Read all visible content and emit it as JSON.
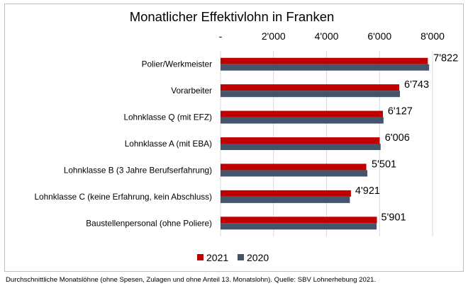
{
  "chart_data": {
    "type": "bar",
    "orientation": "horizontal",
    "title": "Monatlicher Effektivlohn in Franken",
    "categories": [
      "Polier/Werkmeister",
      "Vorarbeiter",
      "Lohnklasse Q (mit EFZ)",
      "Lohnklasse A (mit EBA)",
      "Lohnklasse B (3 Jahre Berufserfahrung)",
      "Lohnklasse C (keine Erfahrung, kein Abschluss)",
      "Baustellenpersonal (ohne Poliere)"
    ],
    "series": [
      {
        "name": "2021",
        "color": "#c00000",
        "values": [
          7822,
          6743,
          6127,
          6006,
          5501,
          4921,
          5901
        ]
      },
      {
        "name": "2020",
        "color": "#44546a",
        "values": [
          7870,
          6770,
          6150,
          6040,
          5540,
          4880,
          5890
        ]
      }
    ],
    "data_labels": [
      "7'822",
      "6'743",
      "6'127",
      "6'006",
      "5'501",
      "4'921",
      "5'901"
    ],
    "xlim": [
      0,
      8000
    ],
    "xticks": [
      0,
      2000,
      4000,
      6000,
      8000
    ],
    "xtick_labels": [
      "-",
      "2'000",
      "4'000",
      "6'000",
      "8'000"
    ],
    "axis_position": "top",
    "grid": true,
    "legend_position": "bottom"
  },
  "footnote": "Durchschnittliche Monatslöhne (ohne Spesen, Zulagen und ohne Anteil 13. Monatslohn). Quelle: SBV Lohnerhebung 2021."
}
